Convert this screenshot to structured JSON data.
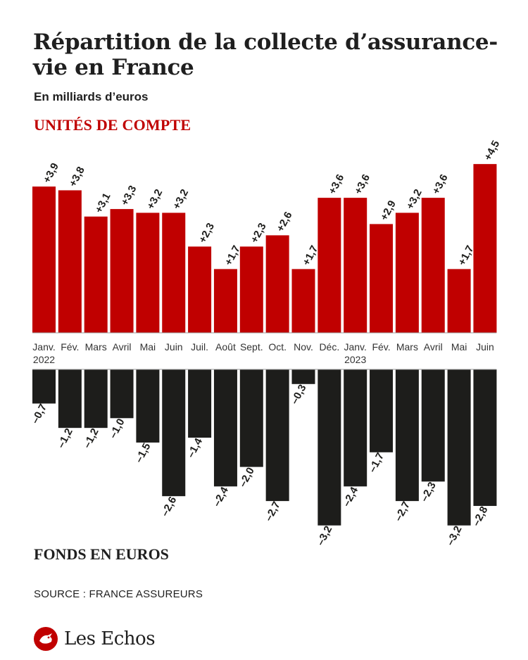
{
  "title": "Répartition de la collecte d’assurance-vie en France",
  "subtitle": "En milliards d’euros",
  "source": "SOURCE : FRANCE ASSUREURS",
  "brand": "Les Echos",
  "colors": {
    "uc": "#c00000",
    "euros": "#1d1d1b"
  },
  "chart_data": {
    "type": "bar",
    "categories": [
      "Janv.",
      "Fév.",
      "Mars",
      "Avril",
      "Mai",
      "Juin",
      "Juil.",
      "Août",
      "Sept.",
      "Oct.",
      "Nov.",
      "Déc.",
      "Janv.",
      "Fév.",
      "Mars",
      "Avril",
      "Mai",
      "Juin"
    ],
    "year_labels": [
      "2022",
      "",
      "",
      "",
      "",
      "",
      "",
      "",
      "",
      "",
      "",
      "",
      "2023",
      "",
      "",
      "",
      "",
      ""
    ],
    "series": [
      {
        "name": "UNITÉS DE COMPTE",
        "color": "#c00000",
        "values": [
          3.9,
          3.8,
          3.1,
          3.3,
          3.2,
          3.2,
          2.3,
          1.7,
          2.3,
          2.6,
          1.7,
          3.6,
          3.6,
          2.9,
          3.2,
          3.6,
          1.7,
          4.5
        ],
        "labels": [
          "+3,9",
          "+3,8",
          "+3,1",
          "+3,3",
          "+3,2",
          "+3,2",
          "+2,3",
          "+1,7",
          "+2,3",
          "+2,6",
          "+1,7",
          "+3,6",
          "+3,6",
          "+2,9",
          "+3,2",
          "+3,6",
          "+1,7",
          "+4,5"
        ]
      },
      {
        "name": "FONDS EN EUROS",
        "color": "#1d1d1b",
        "values": [
          -0.7,
          -1.2,
          -1.2,
          -1.0,
          -1.5,
          -2.6,
          -1.4,
          -2.4,
          -2.0,
          -2.7,
          -0.3,
          -3.2,
          -2.4,
          -1.7,
          -2.7,
          -2.3,
          -3.2,
          -2.8
        ],
        "labels": [
          "–0,7",
          "–1,2",
          "–1,2",
          "–1,0",
          "–1,5",
          "–2,6",
          "–1,4",
          "–2,4",
          "–2,0",
          "–2,7",
          "–0,3",
          "–3,2",
          "–2,4",
          "–1,7",
          "–2,7",
          "–2,3",
          "–3,2",
          "–2,8"
        ]
      }
    ]
  }
}
